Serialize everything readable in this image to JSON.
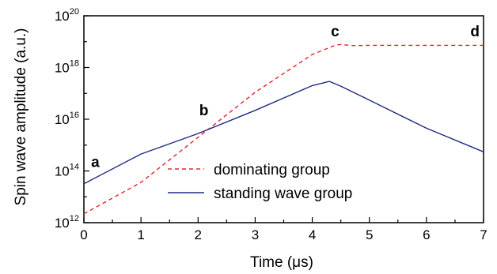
{
  "chart_data": {
    "type": "line",
    "xlabel": "Time (μs)",
    "ylabel": "Spin wave amplitude (a.u.)",
    "xlim": [
      0,
      7
    ],
    "ylim": [
      1000000000000.0,
      1e+20
    ],
    "yscale": "log",
    "x_ticks": [
      "0",
      "1",
      "2",
      "3",
      "4",
      "5",
      "6",
      "7"
    ],
    "y_ticks": [
      {
        "base": "10",
        "exp": "12"
      },
      {
        "base": "10",
        "exp": "14"
      },
      {
        "base": "10",
        "exp": "16"
      },
      {
        "base": "10",
        "exp": "18"
      },
      {
        "base": "10",
        "exp": "20"
      }
    ],
    "series": [
      {
        "name": "dominating group",
        "color": "#e8202a",
        "style": "dashed",
        "x": [
          0,
          1,
          2,
          3,
          4,
          4.4,
          4.5,
          4.7,
          5,
          6,
          7
        ],
        "y": [
          2200000000000.0,
          36000000000000.0,
          2000000000000000.0,
          1.1e+17,
          3.2e+18,
          7.2e+18,
          7.8e+18,
          7e+18,
          7.2e+18,
          7.2e+18,
          7.2e+18
        ]
      },
      {
        "name": "standing wave group",
        "color": "#1f2a80",
        "style": "solid",
        "x": [
          0,
          1,
          2,
          3,
          4,
          4.3,
          4.5,
          5,
          6,
          7
        ],
        "y": [
          32000000000000.0,
          450000000000000.0,
          2800000000000000.0,
          2.2e+16,
          2e+17,
          2.9e+17,
          1.9e+17,
          5.5e+16,
          4500000000000000.0,
          550000000000000.0
        ]
      }
    ],
    "annotations": [
      {
        "text": "a",
        "x": 0.2,
        "y": 140000000000000.0
      },
      {
        "text": "b",
        "x": 2.1,
        "y": 1.4e+16
      },
      {
        "text": "c",
        "x": 4.4,
        "y": 1.6e+19
      },
      {
        "text": "d",
        "x": 6.85,
        "y": 1.6e+19
      }
    ],
    "legend": {
      "position": "bottom-center"
    }
  }
}
